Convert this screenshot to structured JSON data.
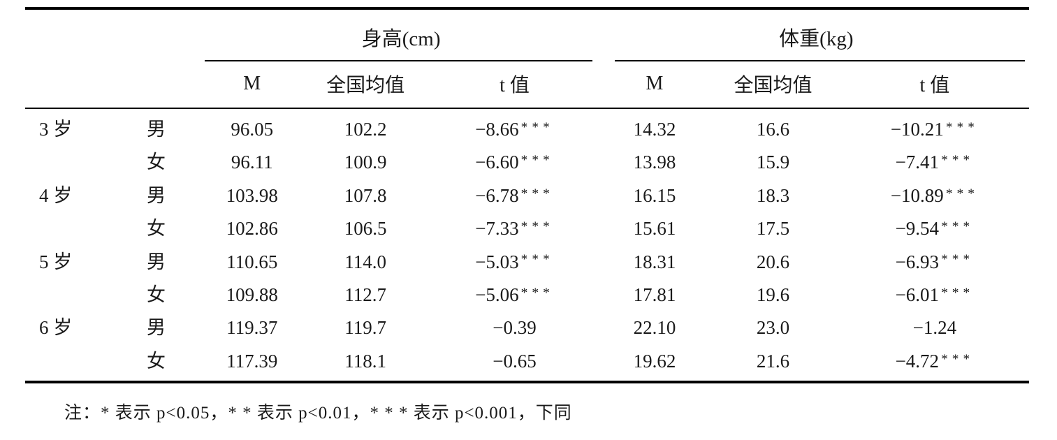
{
  "table": {
    "group_headers": {
      "height": "身高(cm)",
      "weight": "体重(kg)"
    },
    "sub_headers": [
      "M",
      "全国均值",
      "t 值",
      "M",
      "全国均值",
      "t 值"
    ],
    "rows": [
      {
        "age": "3 岁",
        "gender": "男",
        "cells": [
          {
            "v": "96.05"
          },
          {
            "v": "102.2"
          },
          {
            "v": "−8.66",
            "s": "***"
          },
          {
            "v": "14.32"
          },
          {
            "v": "16.6"
          },
          {
            "v": "−10.21",
            "s": "***"
          }
        ]
      },
      {
        "age": "",
        "gender": "女",
        "cells": [
          {
            "v": "96.11"
          },
          {
            "v": "100.9"
          },
          {
            "v": "−6.60",
            "s": "***"
          },
          {
            "v": "13.98"
          },
          {
            "v": "15.9"
          },
          {
            "v": "−7.41",
            "s": "***"
          }
        ]
      },
      {
        "age": "4 岁",
        "gender": "男",
        "cells": [
          {
            "v": "103.98"
          },
          {
            "v": "107.8"
          },
          {
            "v": "−6.78",
            "s": "***"
          },
          {
            "v": "16.15"
          },
          {
            "v": "18.3"
          },
          {
            "v": "−10.89",
            "s": "***"
          }
        ]
      },
      {
        "age": "",
        "gender": "女",
        "cells": [
          {
            "v": "102.86"
          },
          {
            "v": "106.5"
          },
          {
            "v": "−7.33",
            "s": "***"
          },
          {
            "v": "15.61"
          },
          {
            "v": "17.5"
          },
          {
            "v": "−9.54",
            "s": "***"
          }
        ]
      },
      {
        "age": "5 岁",
        "gender": "男",
        "cells": [
          {
            "v": "110.65"
          },
          {
            "v": "114.0"
          },
          {
            "v": "−5.03",
            "s": "***"
          },
          {
            "v": "18.31"
          },
          {
            "v": "20.6"
          },
          {
            "v": "−6.93",
            "s": "***"
          }
        ]
      },
      {
        "age": "",
        "gender": "女",
        "cells": [
          {
            "v": "109.88"
          },
          {
            "v": "112.7"
          },
          {
            "v": "−5.06",
            "s": "***"
          },
          {
            "v": "17.81"
          },
          {
            "v": "19.6"
          },
          {
            "v": "−6.01",
            "s": "***"
          }
        ]
      },
      {
        "age": "6 岁",
        "gender": "男",
        "cells": [
          {
            "v": "119.37"
          },
          {
            "v": "119.7"
          },
          {
            "v": "−0.39",
            "s": ""
          },
          {
            "v": "22.10"
          },
          {
            "v": "23.0"
          },
          {
            "v": "−1.24",
            "s": ""
          }
        ]
      },
      {
        "age": "",
        "gender": "女",
        "cells": [
          {
            "v": "117.39"
          },
          {
            "v": "118.1"
          },
          {
            "v": "−0.65",
            "s": ""
          },
          {
            "v": "19.62"
          },
          {
            "v": "21.6"
          },
          {
            "v": "−4.72",
            "s": "***"
          }
        ]
      }
    ],
    "note": "注：* 表示 p<0.05，* * 表示 p<0.01，* * * 表示 p<0.001，下同"
  }
}
